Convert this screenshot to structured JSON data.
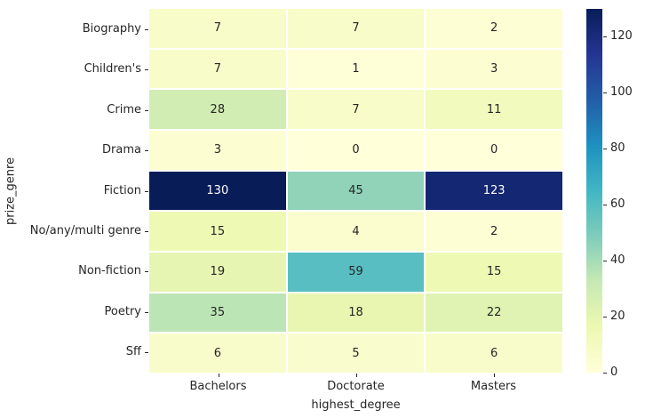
{
  "chart_data": {
    "type": "heatmap",
    "title": "",
    "xlabel": "highest_degree",
    "ylabel": "prize_genre",
    "columns": [
      "Bachelors",
      "Doctorate",
      "Masters"
    ],
    "rows": [
      "Biography",
      "Children's",
      "Crime",
      "Drama",
      "Fiction",
      "No/any/multi genre",
      "Non-fiction",
      "Poetry",
      "Sff"
    ],
    "values": [
      [
        7,
        7,
        2
      ],
      [
        7,
        1,
        3
      ],
      [
        28,
        7,
        11
      ],
      [
        3,
        0,
        0
      ],
      [
        130,
        45,
        123
      ],
      [
        15,
        4,
        2
      ],
      [
        19,
        59,
        15
      ],
      [
        35,
        18,
        22
      ],
      [
        6,
        5,
        6
      ]
    ],
    "vmin": 0,
    "vmax": 130,
    "colormap": {
      "name": "YlGnBu",
      "stops": [
        "#ffffd9",
        "#edf8b1",
        "#c7e9b4",
        "#7fcdbb",
        "#41b6c4",
        "#1d91c0",
        "#225ea8",
        "#253494",
        "#081d58"
      ]
    },
    "colorbar_ticks": [
      0,
      20,
      40,
      60,
      80,
      100,
      120
    ],
    "legend_position": "right",
    "grid": false,
    "annotation_dark_color": "#262626",
    "annotation_light_color": "#ffffff",
    "background_color": "#ffffff"
  }
}
